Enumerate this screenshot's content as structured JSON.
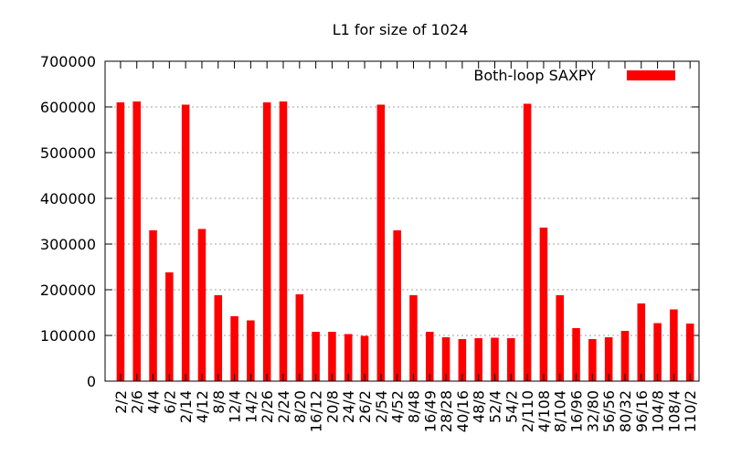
{
  "chart_data": {
    "type": "bar",
    "title": "L1 for size of 1024",
    "xlabel": "",
    "ylabel": "",
    "ylim": [
      0,
      700000
    ],
    "yticks": [
      0,
      100000,
      200000,
      300000,
      400000,
      500000,
      600000,
      700000
    ],
    "ytick_labels": [
      "0",
      "100000",
      "200000",
      "300000",
      "400000",
      "500000",
      "600000",
      "700000"
    ],
    "grid": true,
    "legend_position": "top-right",
    "categories": [
      "2/2",
      "2/6",
      "4/4",
      "6/2",
      "2/14",
      "4/12",
      "8/8",
      "12/4",
      "14/2",
      "2/26",
      "2/24",
      "8/20",
      "16/12",
      "20/8",
      "24/4",
      "26/2",
      "2/54",
      "4/52",
      "8/48",
      "16/49",
      "28/28",
      "40/16",
      "48/8",
      "52/4",
      "54/2",
      "2/110",
      "4/108",
      "8/104",
      "16/96",
      "32/80",
      "56/56",
      "80/32",
      "96/16",
      "104/8",
      "108/4",
      "110/2"
    ],
    "series": [
      {
        "name": "Both-loop SAXPY",
        "color": "#ff0000",
        "values": [
          610000,
          612000,
          330000,
          238000,
          605000,
          333000,
          188000,
          142000,
          133000,
          610000,
          612000,
          190000,
          108000,
          108000,
          103000,
          99000,
          605000,
          330000,
          188000,
          108000,
          96000,
          92000,
          94000,
          95000,
          94000,
          607000,
          336000,
          188000,
          116000,
          92000,
          96000,
          110000,
          170000,
          127000,
          157000,
          126000
        ]
      }
    ]
  }
}
